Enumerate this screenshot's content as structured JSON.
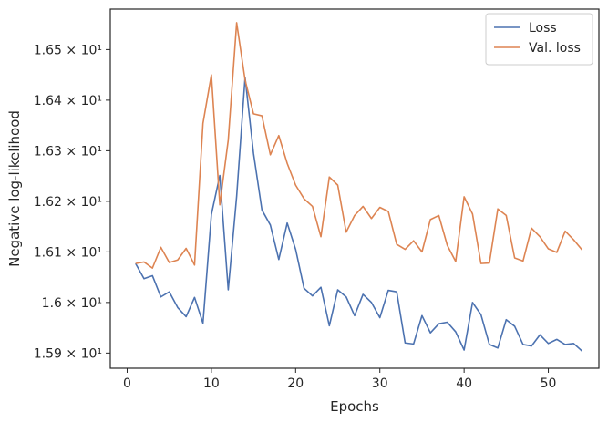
{
  "chart_data": {
    "type": "line",
    "xlabel": "Epochs",
    "ylabel": "Negative log-likelihood",
    "xlim": [
      -2,
      56
    ],
    "ylim": [
      15.87,
      16.58
    ],
    "x_ticks": [
      0,
      10,
      20,
      30,
      40,
      50
    ],
    "x_tick_labels": [
      "0",
      "10",
      "20",
      "30",
      "40",
      "50"
    ],
    "y_ticks": [
      15.9,
      16.0,
      16.1,
      16.2,
      16.3,
      16.4,
      16.5
    ],
    "y_tick_labels": [
      "1.59 × 10¹",
      "1.6 × 10¹",
      "1.61 × 10¹",
      "1.62 × 10¹",
      "1.63 × 10¹",
      "1.64 × 10¹",
      "1.65 × 10¹"
    ],
    "grid": false,
    "legend_position": "top-right",
    "x": [
      1,
      2,
      3,
      4,
      5,
      6,
      7,
      8,
      9,
      10,
      11,
      12,
      13,
      14,
      15,
      16,
      17,
      18,
      19,
      20,
      21,
      22,
      23,
      24,
      25,
      26,
      27,
      28,
      29,
      30,
      31,
      32,
      33,
      34,
      35,
      36,
      37,
      38,
      39,
      40,
      41,
      42,
      43,
      44,
      45,
      46,
      47,
      48,
      49,
      50,
      51,
      52,
      53,
      54
    ],
    "series": [
      {
        "name": "Loss",
        "color": "#4c72b0",
        "values": [
          16.077,
          16.047,
          16.053,
          16.011,
          16.021,
          15.99,
          15.972,
          16.01,
          15.959,
          16.174,
          16.251,
          16.025,
          16.21,
          16.445,
          16.295,
          16.183,
          16.153,
          16.085,
          16.157,
          16.105,
          16.028,
          16.013,
          16.03,
          15.954,
          16.025,
          16.011,
          15.974,
          16.016,
          16.0,
          15.97,
          16.024,
          16.021,
          15.92,
          15.918,
          15.974,
          15.94,
          15.958,
          15.961,
          15.942,
          15.906,
          16.0,
          15.976,
          15.917,
          15.91,
          15.966,
          15.953,
          15.917,
          15.914,
          15.936,
          15.919,
          15.927,
          15.917,
          15.919,
          15.904
        ]
      },
      {
        "name": "Val. loss",
        "color": "#dd8452",
        "values": [
          16.077,
          16.08,
          16.068,
          16.109,
          16.079,
          16.084,
          16.107,
          16.074,
          16.354,
          16.45,
          16.193,
          16.321,
          16.553,
          16.44,
          16.373,
          16.369,
          16.292,
          16.33,
          16.275,
          16.232,
          16.205,
          16.19,
          16.13,
          16.248,
          16.232,
          16.139,
          16.172,
          16.19,
          16.166,
          16.188,
          16.18,
          16.115,
          16.105,
          16.122,
          16.1,
          16.164,
          16.172,
          16.113,
          16.081,
          16.209,
          16.175,
          16.077,
          16.078,
          16.185,
          16.172,
          16.088,
          16.082,
          16.147,
          16.13,
          16.106,
          16.099,
          16.141,
          16.124,
          16.104
        ]
      }
    ]
  }
}
